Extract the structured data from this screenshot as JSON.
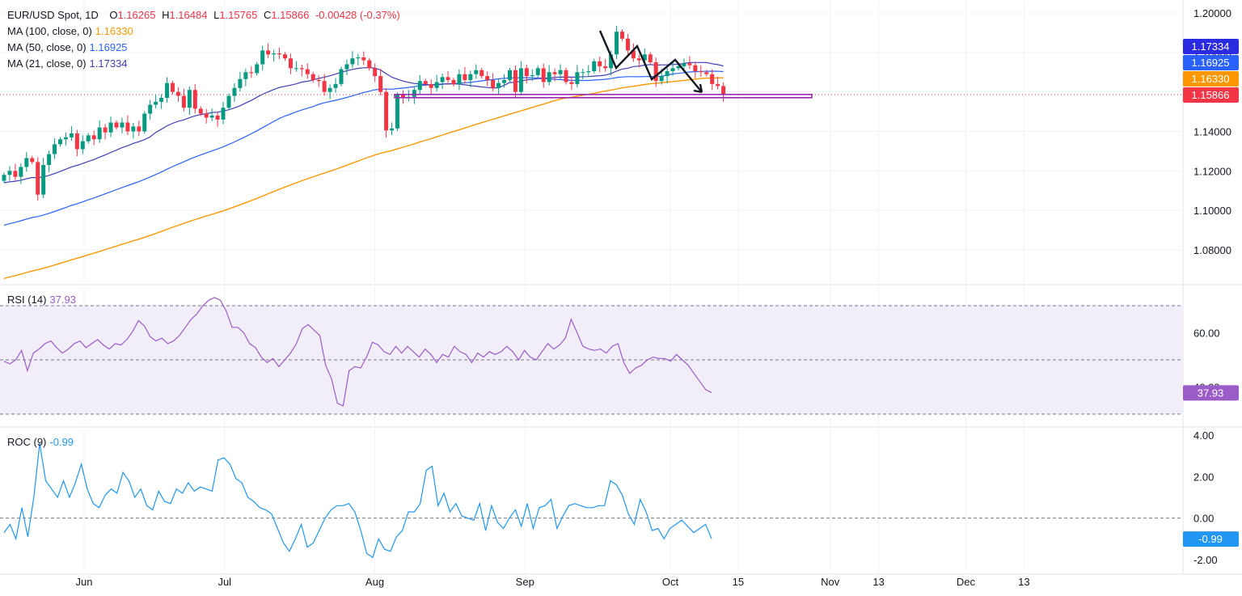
{
  "header": {
    "symbol": "EUR/USD Spot, 1D",
    "open_label": "O",
    "open": "1.16265",
    "high_label": "H",
    "high": "1.16484",
    "low_label": "L",
    "low": "1.15765",
    "close_label": "C",
    "close": "1.15866",
    "change": "-0.00428 (-0.37%)"
  },
  "ma_legends": [
    {
      "label": "MA (100, close, 0)",
      "value": "1.16330",
      "color": "#ff9800"
    },
    {
      "label": "MA (50, close, 0)",
      "value": "1.16925",
      "color": "#2962ff"
    },
    {
      "label": "MA (21, close, 0)",
      "value": "1.17334",
      "color": "#3f3fb5"
    }
  ],
  "rsi_legend": {
    "label": "RSI (14)",
    "value": "37.93",
    "color": "#9c5cc8"
  },
  "roc_legend": {
    "label": "ROC (9)",
    "value": "-0.99",
    "color": "#2196f3"
  },
  "colors": {
    "up": "#089981",
    "down": "#f23645",
    "support": "#9c27b0",
    "rsi_band": "#f1edf9"
  },
  "chart_data": [
    {
      "type": "candlestick",
      "title": "EUR/USD Spot, 1D",
      "ylim": [
        1.065,
        1.205
      ],
      "y_ticks": [
        "1.20000",
        "1.18000",
        "1.16000",
        "1.14000",
        "1.12000",
        "1.10000",
        "1.08000"
      ],
      "x_ticks": [
        {
          "label": "Jun",
          "date": "2025-06-02"
        },
        {
          "label": "Jul",
          "date": "2025-07-01"
        },
        {
          "label": "Aug",
          "date": "2025-08-01"
        },
        {
          "label": "Sep",
          "date": "2025-09-01"
        },
        {
          "label": "Oct",
          "date": "2025-10-01"
        },
        {
          "label": "15",
          "date": "2025-10-15"
        },
        {
          "label": "Nov",
          "date": "2025-11-03"
        },
        {
          "label": "13",
          "date": "2025-11-13"
        },
        {
          "label": "Dec",
          "date": "2025-12-01"
        },
        {
          "label": "13",
          "date": "2025-12-13"
        }
      ],
      "closes": [
        1.118,
        1.12,
        1.117,
        1.122,
        1.1265,
        1.1245,
        1.108,
        1.123,
        1.1285,
        1.1335,
        1.136,
        1.137,
        1.139,
        1.131,
        1.135,
        1.138,
        1.136,
        1.142,
        1.1395,
        1.1445,
        1.142,
        1.1445,
        1.14,
        1.1425,
        1.14,
        1.149,
        1.1535,
        1.155,
        1.157,
        1.1645,
        1.16,
        1.158,
        1.152,
        1.161,
        1.1515,
        1.149,
        1.147,
        1.148,
        1.146,
        1.152,
        1.158,
        1.162,
        1.1665,
        1.17,
        1.1695,
        1.174,
        1.181,
        1.179,
        1.1795,
        1.179,
        1.177,
        1.172,
        1.172,
        1.1715,
        1.169,
        1.166,
        1.1655,
        1.16,
        1.162,
        1.164,
        1.1715,
        1.174,
        1.177,
        1.1775,
        1.176,
        1.172,
        1.168,
        1.16,
        1.1405,
        1.1415,
        1.1585,
        1.157,
        1.1575,
        1.161,
        1.1655,
        1.164,
        1.162,
        1.165,
        1.1675,
        1.166,
        1.164,
        1.169,
        1.166,
        1.169,
        1.171,
        1.168,
        1.166,
        1.162,
        1.1645,
        1.166,
        1.171,
        1.16,
        1.172,
        1.168,
        1.1685,
        1.172,
        1.165,
        1.17,
        1.169,
        1.171,
        1.165,
        1.164,
        1.17,
        1.17,
        1.1705,
        1.1755,
        1.173,
        1.172,
        1.179,
        1.1905,
        1.187,
        1.181,
        1.177,
        1.176,
        1.179,
        1.175,
        1.1655,
        1.168,
        1.1705,
        1.172,
        1.173,
        1.1745,
        1.1735,
        1.1705,
        1.17,
        1.169,
        1.164,
        1.163,
        1.1587
      ],
      "series": [
        {
          "name": "MA (100, close, 0)",
          "last": 1.1633
        },
        {
          "name": "MA (50, close, 0)",
          "last": 1.16925
        },
        {
          "name": "MA (21, close, 0)",
          "last": 1.17334
        }
      ],
      "price_badges": [
        {
          "value": "1.17334",
          "color": "#2a2ae0"
        },
        {
          "value": "1.16925",
          "color": "#2962ff"
        },
        {
          "value": "1.16330",
          "color": "#ff9800"
        },
        {
          "value": "1.15866",
          "color": "#f23645"
        }
      ],
      "support_level": 1.1579
    },
    {
      "type": "line",
      "title": "RSI (14)",
      "ylim": [
        27,
        75
      ],
      "bands": [
        70,
        50,
        30
      ],
      "y_ticks": [
        "60.00",
        "40.00"
      ],
      "last_badge": "37.93",
      "values": [
        49.5,
        48.5,
        50,
        53.5,
        46,
        52.5,
        54,
        56,
        57,
        54.5,
        52.5,
        54,
        56,
        57,
        54.5,
        56,
        57.5,
        55.5,
        54,
        56,
        55.5,
        57.5,
        60.5,
        64.5,
        62.5,
        58.5,
        57,
        58,
        56,
        57,
        59,
        62,
        65,
        67,
        70,
        72,
        73,
        72,
        68,
        62,
        62,
        60,
        56,
        54.5,
        51,
        49,
        50.5,
        47.5,
        50,
        52.5,
        56,
        61.5,
        63,
        61,
        59,
        48,
        43,
        34,
        33,
        46,
        47.5,
        47,
        51,
        56.5,
        55.5,
        53,
        52,
        55,
        52.5,
        55,
        53,
        51,
        54,
        52,
        49,
        52,
        51,
        55,
        53,
        52,
        49,
        52.5,
        51,
        53,
        52,
        53,
        55,
        53,
        50,
        53.5,
        51,
        50,
        53,
        56,
        54,
        55.5,
        58,
        65,
        60,
        55,
        54,
        53.5,
        54,
        52.5,
        55,
        56,
        49,
        45,
        47,
        48,
        50,
        51,
        50.5,
        50.5,
        49.5,
        52,
        50,
        48,
        45,
        42,
        39,
        37.93
      ]
    },
    {
      "type": "line",
      "title": "ROC (9)",
      "ylim": [
        -2.3,
        4.2
      ],
      "y_ticks": [
        "4.00",
        "2.00",
        "0.00",
        "-2.00"
      ],
      "zero_line": 0,
      "last_badge": "-0.99",
      "values": [
        -0.7,
        -0.3,
        -1.0,
        0.5,
        -0.9,
        1.0,
        3.6,
        1.8,
        1.4,
        1.0,
        1.8,
        1.0,
        1.7,
        2.6,
        1.4,
        0.7,
        0.5,
        1.1,
        1.4,
        1.2,
        2.2,
        1.8,
        1.0,
        1.4,
        0.6,
        0.4,
        1.3,
        0.8,
        0.7,
        1.4,
        1.2,
        1.7,
        1.3,
        1.5,
        1.4,
        1.3,
        2.8,
        2.9,
        2.6,
        1.9,
        1.7,
        1.0,
        0.8,
        0.5,
        0.4,
        0.2,
        -0.5,
        -1.2,
        -1.6,
        -1.0,
        -0.3,
        -1.4,
        -1.2,
        -0.6,
        0.0,
        0.4,
        0.6,
        0.6,
        0.7,
        0.3,
        -0.6,
        -1.7,
        -1.9,
        -1.0,
        -1.5,
        -1.6,
        -0.9,
        -0.6,
        0.3,
        0.3,
        0.7,
        2.3,
        2.5,
        0.6,
        1.2,
        0.3,
        0.7,
        0.1,
        0.0,
        -0.1,
        0.7,
        -0.6,
        0.6,
        -0.2,
        -0.5,
        0.0,
        0.4,
        -0.4,
        0.7,
        -0.5,
        0.5,
        0.6,
        0.9,
        -0.5,
        0.1,
        0.6,
        0.7,
        0.6,
        0.5,
        0.5,
        0.6,
        0.6,
        1.8,
        1.6,
        1.1,
        0.2,
        -0.3,
        0.9,
        0.3,
        -0.6,
        -0.5,
        -1.0,
        -0.5,
        -0.3,
        -0.1,
        -0.4,
        -0.7,
        -0.5,
        -0.3,
        -0.99
      ]
    }
  ]
}
